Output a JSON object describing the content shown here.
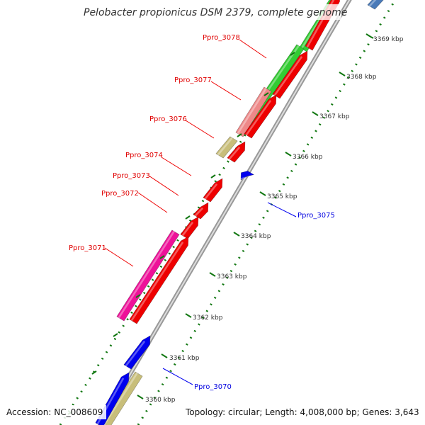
{
  "title": "Pelobacter propionicus DSM 2379, complete genome",
  "footer": {
    "accession": "Accession: NC_008609",
    "topology": "Topology: circular; Length: 4,008,000 bp; Genes: 3,643"
  },
  "scale_labels": [
    "3360 kbp",
    "3361 kbp",
    "3362 kbp",
    "3363 kbp",
    "3364 kbp",
    "3365 kbp",
    "3366 kbp",
    "3367 kbp",
    "3368 kbp",
    "3369 kbp"
  ],
  "genes": [
    {
      "label": "Ppro_3070",
      "color": "#0000e0"
    },
    {
      "label": "Ppro_3071",
      "color": "#e00000"
    },
    {
      "label": "Ppro_3072",
      "color": "#e00000"
    },
    {
      "label": "Ppro_3073",
      "color": "#e00000"
    },
    {
      "label": "Ppro_3074",
      "color": "#e00000"
    },
    {
      "label": "Ppro_3075",
      "color": "#0000e0"
    },
    {
      "label": "Ppro_3076",
      "color": "#e00000"
    },
    {
      "label": "Ppro_3077",
      "color": "#e00000"
    },
    {
      "label": "Ppro_3078",
      "color": "#e00000"
    }
  ],
  "colors": {
    "cds": "#ee0000",
    "cds_blue": "#0000ee",
    "cds_steel": "#4a7ab8",
    "feat_green": "#33cc33",
    "feat_salmon": "#ee8888",
    "feat_pink": "#ee1199",
    "feat_khaki": "#c8be7a",
    "tick_green": "#117711",
    "backbone": "#999999"
  },
  "icons": [
    "cds-forward-arrow",
    "cds-reverse-arrow"
  ]
}
